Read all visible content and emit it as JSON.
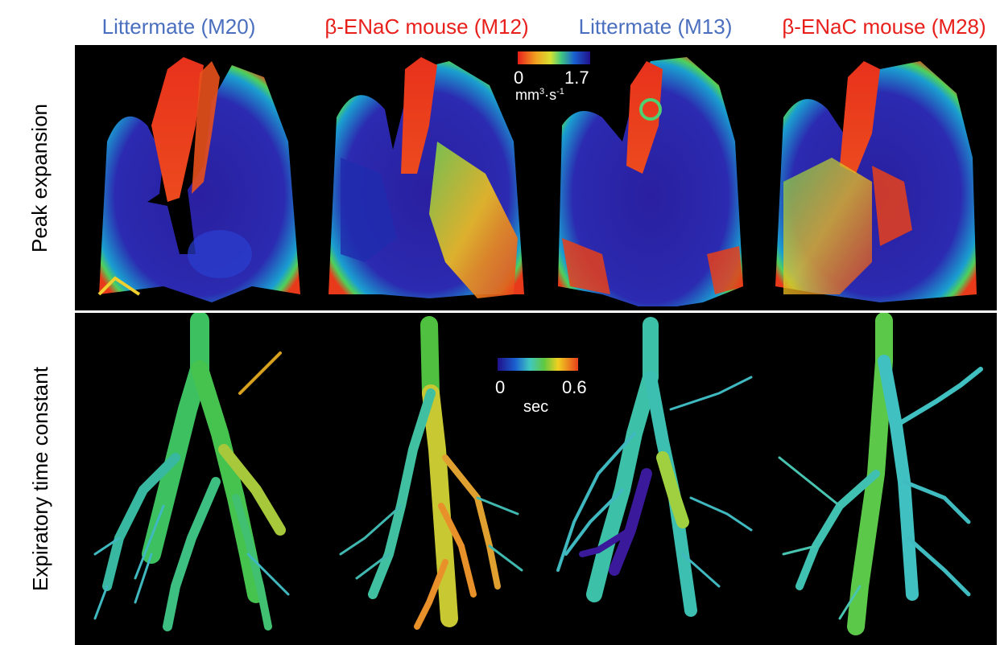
{
  "columns": [
    {
      "title": "Littermate (M20)",
      "color": "#4a6fbf"
    },
    {
      "title": "β-ENaC mouse (M12)",
      "color": "#e8201c"
    },
    {
      "title": "Littermate (M13)",
      "color": "#4a6fbf"
    },
    {
      "title": "β-ENaC mouse (M28)",
      "color": "#e8201c"
    }
  ],
  "rows": {
    "top_label": "Peak  expansion",
    "bottom_label": "Expiratory time constant"
  },
  "colorbars": {
    "top": {
      "min": "0",
      "max": "1.7",
      "unit_base": "mm",
      "unit_exp1": "3",
      "unit_mid": "·s",
      "unit_exp2": "-1",
      "colormap": "red-to-blue"
    },
    "bottom": {
      "min": "0",
      "max": "0.6",
      "unit": "sec",
      "colormap": "blue-to-red"
    }
  }
}
